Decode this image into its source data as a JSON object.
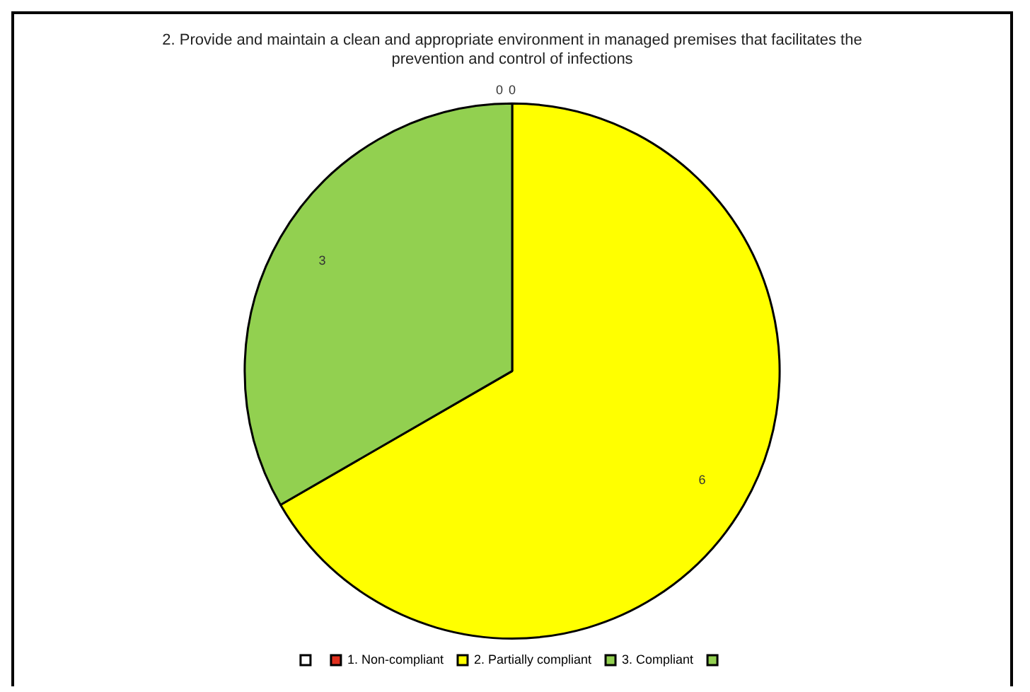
{
  "chart_data": {
    "type": "pie",
    "title": "2. Provide and maintain a clean and appropriate environment in managed premises that facilitates the\nprevention and control of infections",
    "categories": [
      null,
      "1. Non-compliant",
      "2. Partially compliant",
      "3. Compliant",
      null
    ],
    "values": [
      0,
      0,
      6,
      3,
      null
    ],
    "colors": [
      "#ffffff",
      "#e0301e",
      "#ffff00",
      "#92d050",
      "#92d050"
    ],
    "value_labels": [
      "0",
      "0",
      "6",
      "3",
      null
    ],
    "legend": "bottom"
  }
}
